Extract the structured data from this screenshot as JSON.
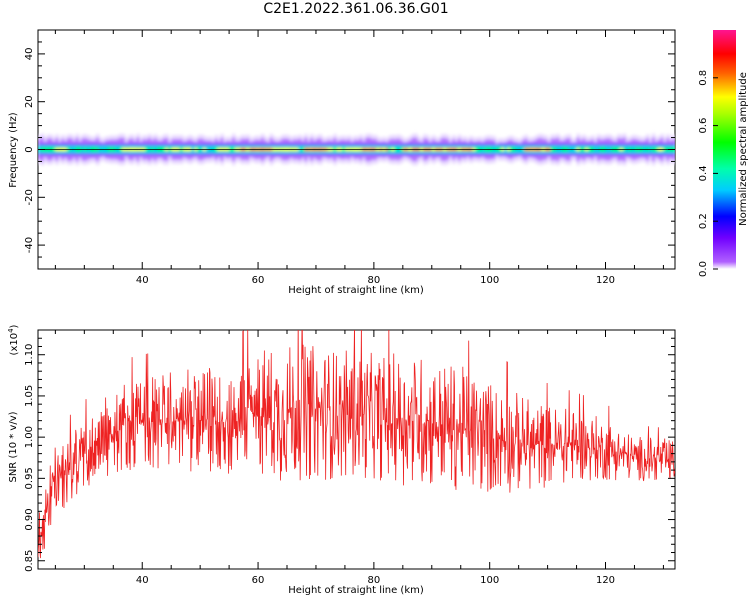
{
  "title": "C2E1.2022.361.06.36.G01",
  "chart_data": [
    {
      "type": "heatmap",
      "xlabel": "Height of straight line (km)",
      "ylabel": "Frequency (Hz)",
      "xlim": [
        22,
        132
      ],
      "ylim": [
        -50,
        50
      ],
      "xticks": [
        40,
        60,
        80,
        100,
        120
      ],
      "yticks": [
        -40,
        -20,
        0,
        20,
        40
      ],
      "colorbar": {
        "label": "Normalized spectral amplitude",
        "range": [
          0.0,
          1.0
        ],
        "ticks": [
          "0.0",
          "0.2",
          "0.4",
          "0.6",
          "0.8"
        ],
        "colors": [
          "#ffffff",
          "#8a00ff",
          "#0000ff",
          "#00ffff",
          "#00ff00",
          "#ffff00",
          "#ff8000",
          "#ff0000",
          "#ff1493"
        ]
      },
      "band": {
        "center_hz": 0,
        "strong_segments_km": [
          [
            57,
            62
          ],
          [
            68,
            72
          ],
          [
            78,
            82
          ],
          [
            85,
            97
          ],
          [
            106,
            110
          ]
        ],
        "moderate_segments_km": [
          [
            24,
            26
          ],
          [
            36,
            40
          ],
          [
            44,
            48
          ],
          [
            53,
            57
          ],
          [
            62,
            66
          ],
          [
            72,
            78
          ]
        ]
      }
    },
    {
      "type": "line",
      "xlabel": "Height of straight line (km)",
      "ylabel": "SNR (10 * v/v)",
      "scale_label": "(x10^4)",
      "xlim": [
        22,
        132
      ],
      "ylim": [
        0.84,
        1.13
      ],
      "xticks": [
        40,
        60,
        80,
        100,
        120
      ],
      "yticks": [
        0.85,
        0.9,
        0.95,
        1.0,
        1.05,
        1.1
      ],
      "ytick_labels": [
        "0.85",
        "0.90",
        "0.95",
        "1.00",
        "1.05",
        "1.10"
      ],
      "color": "#ee2222",
      "envelope": {
        "x": [
          22,
          25,
          30,
          37,
          45,
          55,
          60,
          63,
          70,
          80,
          88,
          95,
          100,
          108,
          115,
          120,
          125,
          132
        ],
        "mean": [
          0.875,
          0.945,
          0.98,
          1.015,
          1.02,
          1.02,
          1.03,
          1.03,
          1.03,
          1.025,
          1.02,
          1.01,
          1.0,
          0.99,
          0.99,
          0.985,
          0.975,
          0.97
        ],
        "amplitude": [
          0.035,
          0.04,
          0.04,
          0.05,
          0.055,
          0.06,
          0.07,
          0.08,
          0.075,
          0.07,
          0.075,
          0.07,
          0.065,
          0.05,
          0.04,
          0.035,
          0.025,
          0.025
        ]
      }
    }
  ]
}
